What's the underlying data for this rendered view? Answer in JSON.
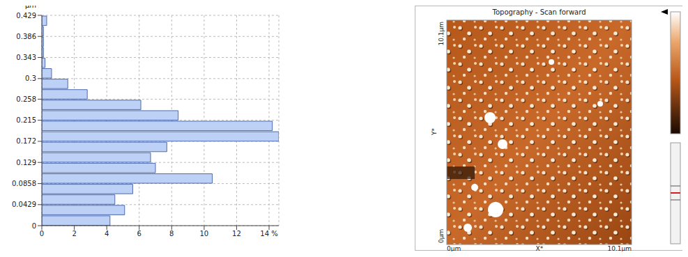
{
  "chart_data": {
    "type": "histogram",
    "orientation": "horizontal",
    "y_label": "µm",
    "bins": [
      0,
      0.02145,
      0.0429,
      0.06435,
      0.0858,
      0.10725,
      0.1287,
      0.15015,
      0.1716,
      0.19305,
      0.2145,
      0.23595,
      0.2574,
      0.27885,
      0.3003,
      0.32175,
      0.3432,
      0.36465,
      0.3861,
      0.40755,
      0.429
    ],
    "values": [
      4.2,
      5.1,
      4.5,
      5.6,
      10.5,
      7.0,
      6.7,
      7.7,
      14.6,
      14.2,
      8.4,
      6.1,
      2.8,
      1.6,
      0.6,
      0.2,
      0.1,
      0.1,
      0.1,
      0.3
    ],
    "color": "#bdd0f5",
    "xlim": [
      0,
      14.6
    ],
    "xticks": [
      0,
      2,
      4,
      6,
      8,
      10,
      12,
      {
        "value": 14,
        "label": "14 %"
      }
    ],
    "ylim": [
      0,
      0.429
    ],
    "yticks": [
      0,
      0.0429,
      0.0858,
      0.129,
      0.172,
      0.215,
      0.258,
      0.3,
      0.343,
      0.386,
      0.429
    ],
    "grid": true
  },
  "panel": {
    "title": "Topography - Scan forward",
    "y_axis": {
      "label": "Y*",
      "top": "10.1µm",
      "bottom": "0µm"
    },
    "x_axis": {
      "label": "X*",
      "left": "0µm",
      "right": "10.1µm"
    }
  }
}
